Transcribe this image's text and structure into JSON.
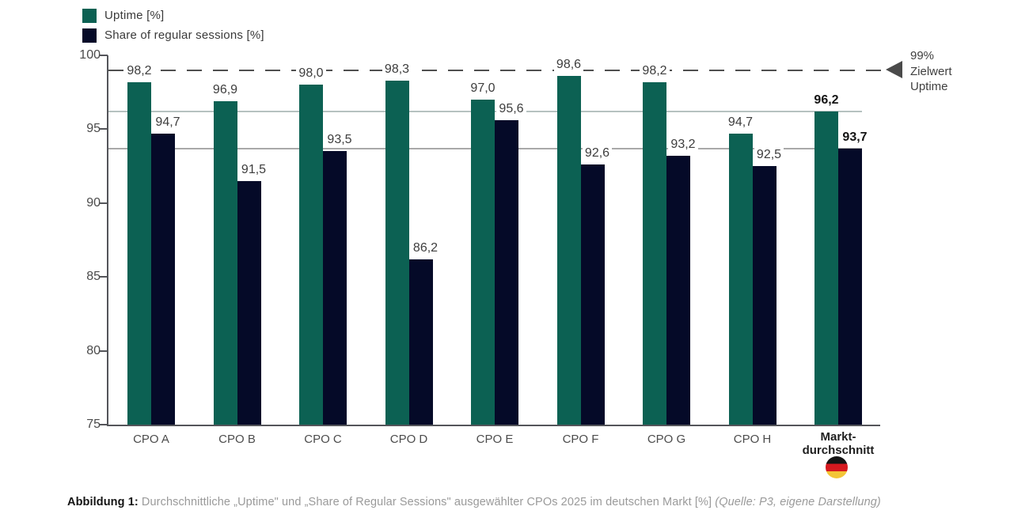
{
  "legend_title": "",
  "chart_data": {
    "type": "bar",
    "title": "",
    "xlabel": "",
    "ylabel": "",
    "ylim": [
      75,
      100
    ],
    "yticks": [
      75,
      80,
      85,
      90,
      95,
      100
    ],
    "grid": "horizontal-average-lines",
    "legend_position": "top-left",
    "categories": [
      "CPO A",
      "CPO B",
      "CPO C",
      "CPO D",
      "CPO E",
      "CPO F",
      "CPO G",
      "CPO H",
      "Marktdurchschnitt"
    ],
    "last_category_lines": [
      "Markt-",
      "durchschnitt"
    ],
    "series": [
      {
        "name": "Uptime [%]",
        "color": "#0c6153",
        "values": [
          98.2,
          96.9,
          98.0,
          98.3,
          97.0,
          98.6,
          98.2,
          94.7,
          96.2
        ],
        "labels": [
          "98,2",
          "96,9",
          "98,0",
          "98,3",
          "97,0",
          "98,6",
          "98,2",
          "94,7",
          "96,2"
        ]
      },
      {
        "name": "Share of regular sessions [%]",
        "color": "#050a28",
        "values": [
          94.7,
          91.5,
          93.5,
          86.2,
          95.6,
          92.6,
          93.2,
          92.5,
          93.7
        ],
        "labels": [
          "94,7",
          "91,5",
          "93,5",
          "86,2",
          "95,6",
          "92,6",
          "93,2",
          "92,5",
          "93,7"
        ]
      }
    ],
    "target_line": {
      "value": 99,
      "style": "dashed",
      "color": "#4f4f4f",
      "lines": [
        "99%",
        "Zielwert",
        "Uptime"
      ]
    },
    "avg_gridlines": [
      {
        "value": 96.2,
        "color": "#b6c2c0"
      },
      {
        "value": 93.7,
        "color": "#a9a9a9"
      }
    ],
    "market_flag_colors": {
      "top": "#141414",
      "middle": "#d6191f",
      "bottom": "#f3c537"
    }
  },
  "caption": {
    "prefix": "Abbildung 1:",
    "body": " Durchschnittliche „Uptime\" und „Share of Regular Sessions\" ausgewählter CPOs 2025 im deutschen Markt [%] ",
    "source": "(Quelle: P3, eigene Darstellung)"
  }
}
